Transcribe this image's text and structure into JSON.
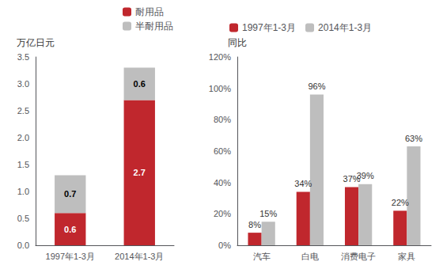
{
  "chart_data": [
    {
      "type": "bar",
      "stacked": true,
      "ylabel": "万亿日元",
      "categories": [
        "1997年1-3月",
        "2014年1-3月"
      ],
      "series": [
        {
          "name": "耐用品",
          "color": "#C0272D",
          "values": [
            0.6,
            2.7
          ]
        },
        {
          "name": "半耐用品",
          "color": "#BEBEBE",
          "values": [
            0.7,
            0.6
          ]
        }
      ],
      "ylim": [
        0,
        3.5
      ],
      "yticks": [
        {
          "value": 0,
          "label": "0.0"
        },
        0.5,
        {
          "value": 1,
          "label": "1.0"
        },
        1.5,
        {
          "value": 2,
          "label": "2.0"
        },
        2.5,
        {
          "value": 3,
          "label": "3.0"
        },
        3.5
      ],
      "data_labels": true,
      "legend": "top",
      "grid": false
    },
    {
      "type": "bar",
      "ylabel": "同比",
      "categories": [
        "汽车",
        "白电",
        "消费电子",
        "家具"
      ],
      "series": [
        {
          "name": "1997年1-3月",
          "color": "#C0272D",
          "values": [
            0.08,
            0.34,
            0.37,
            0.22
          ],
          "value_labels": [
            "8%",
            "34%",
            "37%",
            "22%"
          ]
        },
        {
          "name": "2014年1-3月",
          "color": "#BEBEBE",
          "values": [
            0.15,
            0.96,
            0.39,
            0.63
          ],
          "value_labels": [
            "15%",
            "96%",
            "39%",
            "63%"
          ]
        }
      ],
      "ylim": [
        0,
        1.2
      ],
      "yticks": [
        {
          "value": 0,
          "label": "0%"
        },
        {
          "value": 0.2,
          "label": "20%"
        },
        {
          "value": 0.4,
          "label": "40%"
        },
        {
          "value": 0.6,
          "label": "60%"
        },
        {
          "value": 0.8,
          "label": "80%"
        },
        {
          "value": 1,
          "label": "100%"
        },
        {
          "value": 1.2,
          "label": "120%"
        }
      ],
      "data_labels": true,
      "legend": "top",
      "grid": false
    }
  ]
}
